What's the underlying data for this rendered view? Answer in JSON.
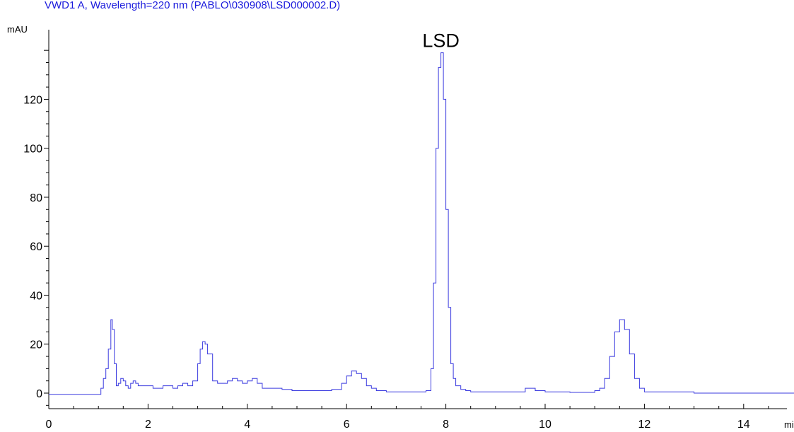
{
  "chart_data": {
    "type": "line",
    "title": "VWD1 A, Wavelength=220 nm (PABLO\\030908\\LSD000002.D)",
    "ylabel": "mAU",
    "xlabel": "min",
    "xlim": [
      0,
      15.05
    ],
    "ylim": [
      -5,
      145
    ],
    "xticks": [
      0,
      2,
      4,
      6,
      8,
      10,
      12,
      14
    ],
    "yticks": [
      0,
      20,
      40,
      60,
      80,
      100,
      120
    ],
    "annotations": [
      {
        "text": "LSD",
        "x": 7.9,
        "y": 139
      }
    ],
    "series": [
      {
        "color": "#3a3adf",
        "x": [
          0.0,
          0.2,
          0.9,
          1.05,
          1.1,
          1.15,
          1.2,
          1.25,
          1.28,
          1.32,
          1.36,
          1.4,
          1.45,
          1.5,
          1.55,
          1.6,
          1.65,
          1.7,
          1.75,
          1.8,
          1.9,
          2.0,
          2.1,
          2.2,
          2.3,
          2.4,
          2.5,
          2.6,
          2.7,
          2.8,
          2.9,
          3.0,
          3.05,
          3.1,
          3.15,
          3.2,
          3.3,
          3.4,
          3.5,
          3.6,
          3.7,
          3.8,
          3.9,
          4.0,
          4.1,
          4.2,
          4.3,
          4.5,
          4.7,
          4.9,
          5.1,
          5.3,
          5.5,
          5.7,
          5.9,
          6.0,
          6.1,
          6.2,
          6.3,
          6.4,
          6.5,
          6.6,
          6.8,
          7.0,
          7.2,
          7.4,
          7.6,
          7.7,
          7.75,
          7.8,
          7.85,
          7.9,
          7.95,
          8.0,
          8.05,
          8.1,
          8.15,
          8.2,
          8.3,
          8.4,
          8.5,
          8.6,
          9.0,
          9.4,
          9.6,
          9.7,
          9.8,
          10.0,
          10.5,
          11.0,
          11.1,
          11.2,
          11.3,
          11.4,
          11.5,
          11.6,
          11.7,
          11.8,
          11.9,
          12.0,
          13.0,
          14.0,
          15.05
        ],
        "y": [
          -0.5,
          -0.5,
          -0.5,
          2,
          6,
          10,
          18,
          30,
          26,
          12,
          3,
          4,
          6,
          5,
          3,
          2,
          4,
          5,
          4,
          3,
          3,
          3,
          2,
          2,
          3,
          3,
          2,
          3,
          4,
          3,
          5,
          12,
          18,
          21,
          20,
          16,
          5,
          4,
          4,
          5,
          6,
          5,
          4,
          5,
          6,
          4,
          2,
          2,
          1.5,
          1,
          1,
          1,
          1,
          1.5,
          4,
          7,
          9,
          8,
          6,
          3,
          2,
          1,
          0.5,
          0.5,
          0.5,
          0.5,
          1,
          10,
          45,
          100,
          133,
          139,
          120,
          75,
          35,
          12,
          6,
          3,
          1.5,
          1,
          0.5,
          0.5,
          0.5,
          0.5,
          2,
          2,
          1,
          0.5,
          0.3,
          1,
          2,
          6,
          15,
          25,
          30,
          26,
          16,
          6,
          2,
          0.5,
          0,
          0,
          0
        ]
      }
    ]
  }
}
